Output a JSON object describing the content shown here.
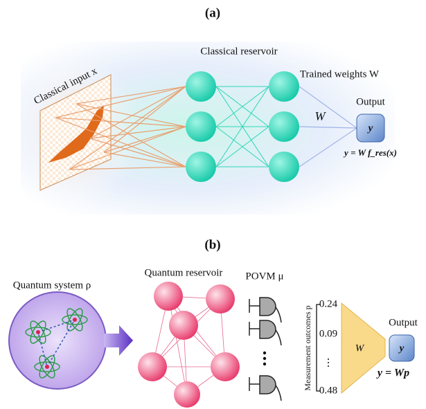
{
  "panel_a": {
    "label": "(a)",
    "input_label": "Classical input x",
    "reservoir_label": "Classical reservoir",
    "weights_label": "Trained weights W",
    "weight_symbol": "W",
    "output_label": "Output",
    "output_symbol": "y",
    "formula": "y = W f_res(x)"
  },
  "panel_b": {
    "label": "(b)",
    "system_label": "Quantum system ρ",
    "reservoir_label": "Quantum reservoir",
    "povm_label": "POVM μ",
    "outcomes_label": "Measurement outcomes p",
    "outcomes": [
      "0.24",
      "0.09",
      "⋮",
      "0.48"
    ],
    "weight_symbol": "W",
    "output_label": "Output",
    "output_symbol": "y",
    "formula": "y = Wp"
  }
}
